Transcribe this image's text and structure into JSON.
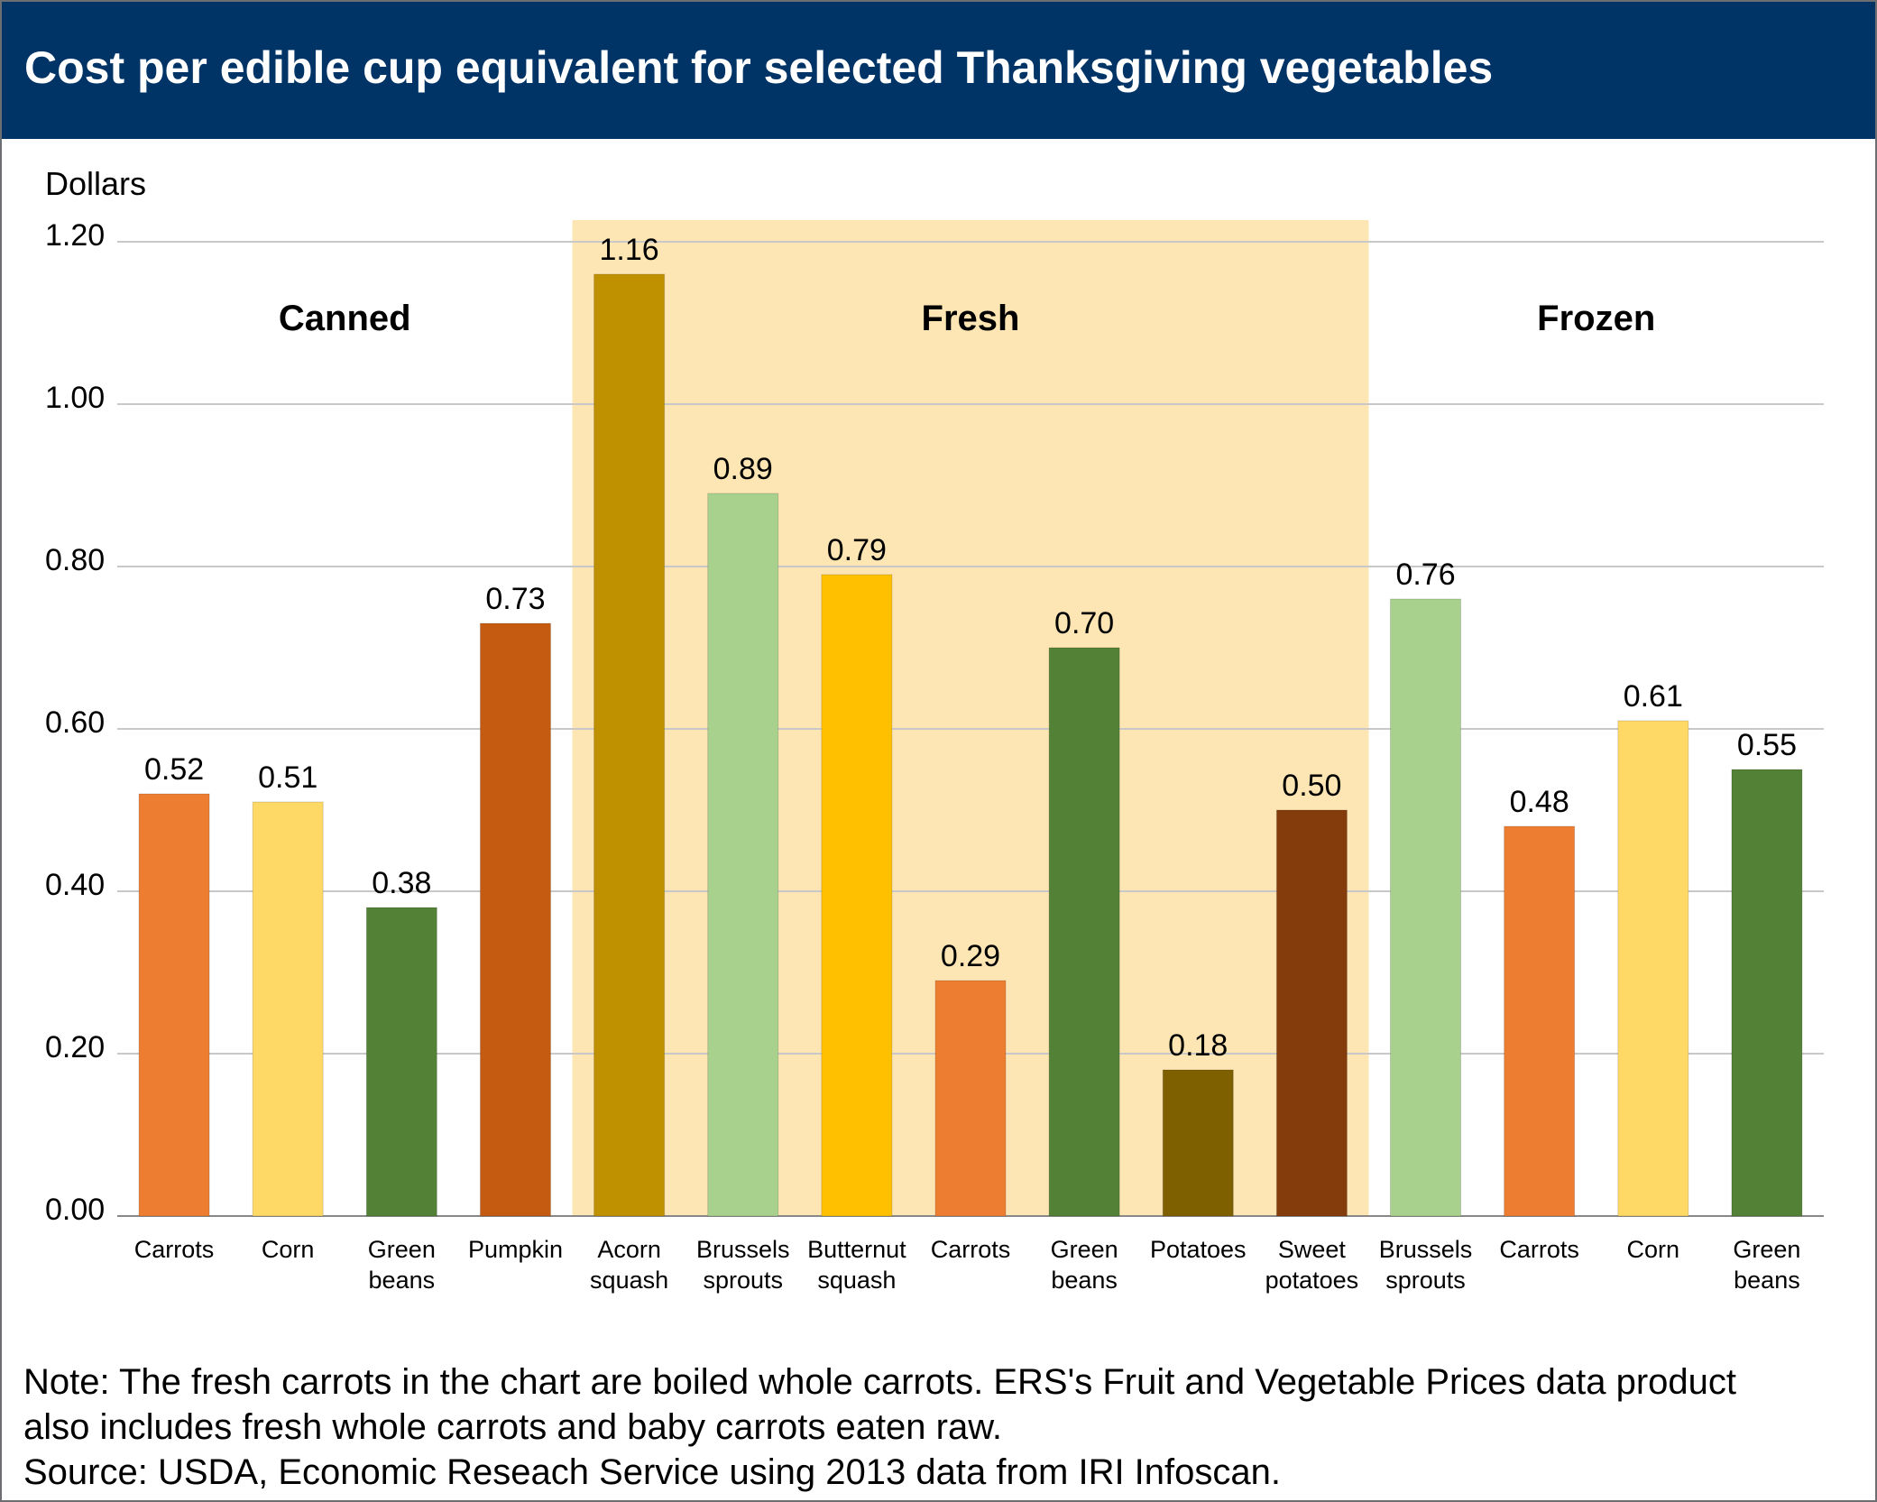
{
  "title": "Cost per edible cup equivalent for selected Thanksgiving vegetables",
  "colors": {
    "header_bg": "#003366",
    "fresh_band": "#fde6b3",
    "grid": "#c8c8c8"
  },
  "chart_data": {
    "type": "bar",
    "ylabel": "Dollars",
    "ylim": [
      0,
      1.2
    ],
    "yticks": [
      "0.00",
      "0.20",
      "0.40",
      "0.60",
      "0.80",
      "1.00",
      "1.20"
    ],
    "grid": true,
    "groups": [
      {
        "name": "Canned",
        "highlighted": false
      },
      {
        "name": "Fresh",
        "highlighted": true
      },
      {
        "name": "Frozen",
        "highlighted": false
      }
    ],
    "bars": [
      {
        "group": 0,
        "label": [
          "Carrots"
        ],
        "value": 0.52,
        "display": "0.52",
        "color": "#ed7d31"
      },
      {
        "group": 0,
        "label": [
          "Corn"
        ],
        "value": 0.51,
        "display": "0.51",
        "color": "#ffd966"
      },
      {
        "group": 0,
        "label": [
          "Green",
          "beans"
        ],
        "value": 0.38,
        "display": "0.38",
        "color": "#538135"
      },
      {
        "group": 0,
        "label": [
          "Pumpkin"
        ],
        "value": 0.73,
        "display": "0.73",
        "color": "#c55a11"
      },
      {
        "group": 1,
        "label": [
          "Acorn",
          "squash"
        ],
        "value": 1.16,
        "display": "1.16",
        "color": "#bf9000"
      },
      {
        "group": 1,
        "label": [
          "Brussels",
          "sprouts"
        ],
        "value": 0.89,
        "display": "0.89",
        "color": "#a9d18e"
      },
      {
        "group": 1,
        "label": [
          "Butternut",
          "squash"
        ],
        "value": 0.79,
        "display": "0.79",
        "color": "#ffc000"
      },
      {
        "group": 1,
        "label": [
          "Carrots"
        ],
        "value": 0.29,
        "display": "0.29",
        "color": "#ed7d31"
      },
      {
        "group": 1,
        "label": [
          "Green",
          "beans"
        ],
        "value": 0.7,
        "display": "0.70",
        "color": "#538135"
      },
      {
        "group": 1,
        "label": [
          "Potatoes"
        ],
        "value": 0.18,
        "display": "0.18",
        "color": "#7f6000"
      },
      {
        "group": 1,
        "label": [
          "Sweet",
          "potatoes"
        ],
        "value": 0.5,
        "display": "0.50",
        "color": "#843c0c"
      },
      {
        "group": 2,
        "label": [
          "Brussels",
          "sprouts"
        ],
        "value": 0.76,
        "display": "0.76",
        "color": "#a9d18e"
      },
      {
        "group": 2,
        "label": [
          "Carrots"
        ],
        "value": 0.48,
        "display": "0.48",
        "color": "#ed7d31"
      },
      {
        "group": 2,
        "label": [
          "Corn"
        ],
        "value": 0.61,
        "display": "0.61",
        "color": "#ffd966"
      },
      {
        "group": 2,
        "label": [
          "Green",
          "beans"
        ],
        "value": 0.55,
        "display": "0.55",
        "color": "#538135"
      }
    ]
  },
  "note": {
    "line1": "Note: The fresh carrots in the chart are boiled whole carrots. ERS's Fruit and Vegetable Prices data product",
    "line2": "also includes fresh whole carrots and baby carrots eaten raw.",
    "source": "Source:  USDA, Economic Reseach Service using 2013 data from IRI Infoscan."
  }
}
